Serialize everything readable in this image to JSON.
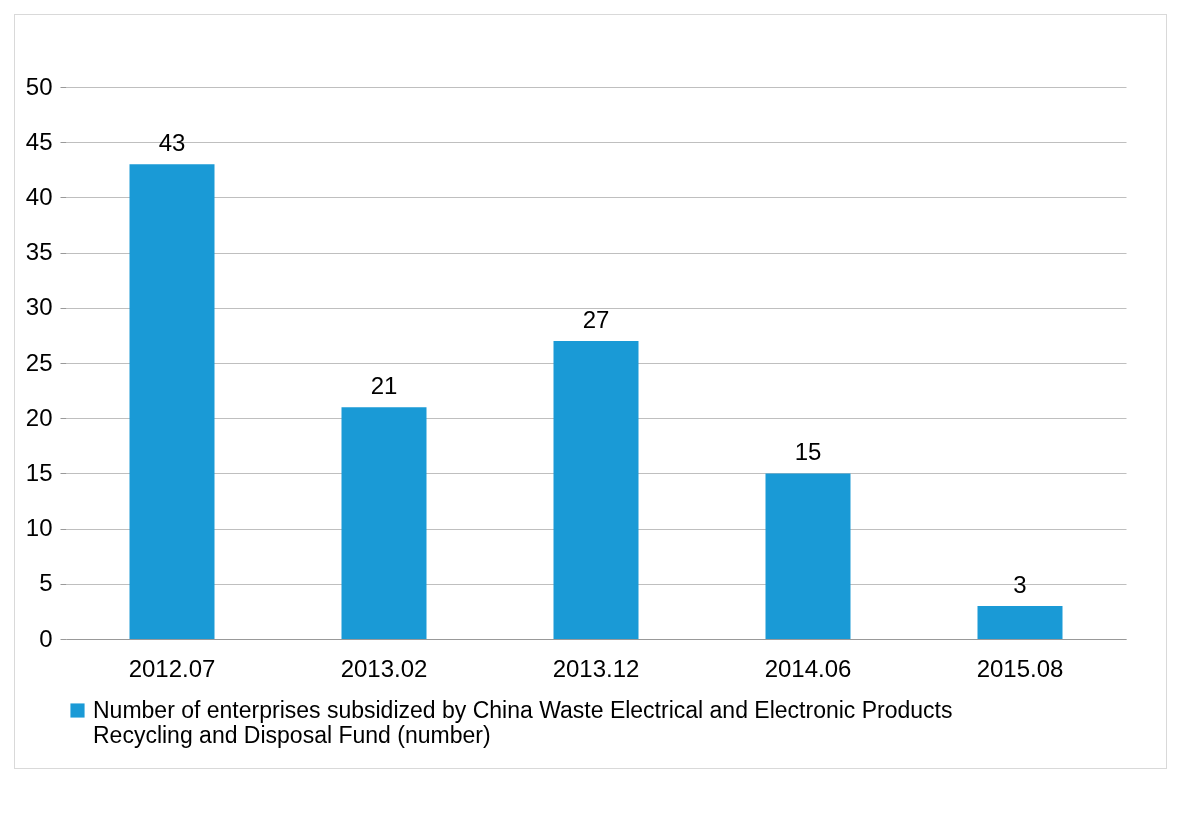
{
  "chart_data": {
    "type": "bar",
    "categories": [
      "2012.07",
      "2013.02",
      "2013.12",
      "2014.06",
      "2015.08"
    ],
    "series": [
      {
        "name": "Number of enterprises subsidized by China Waste Electrical and Electronic Products Recycling and Disposal Fund (number)",
        "color": "#1a9ad6",
        "values": [
          43,
          21,
          27,
          15,
          3
        ]
      }
    ],
    "ylim": [
      0,
      50
    ],
    "yticks": [
      0,
      5,
      10,
      15,
      20,
      25,
      30,
      35,
      40,
      45,
      50
    ],
    "grid": "y",
    "legend": "bottom",
    "data_labels": true
  }
}
